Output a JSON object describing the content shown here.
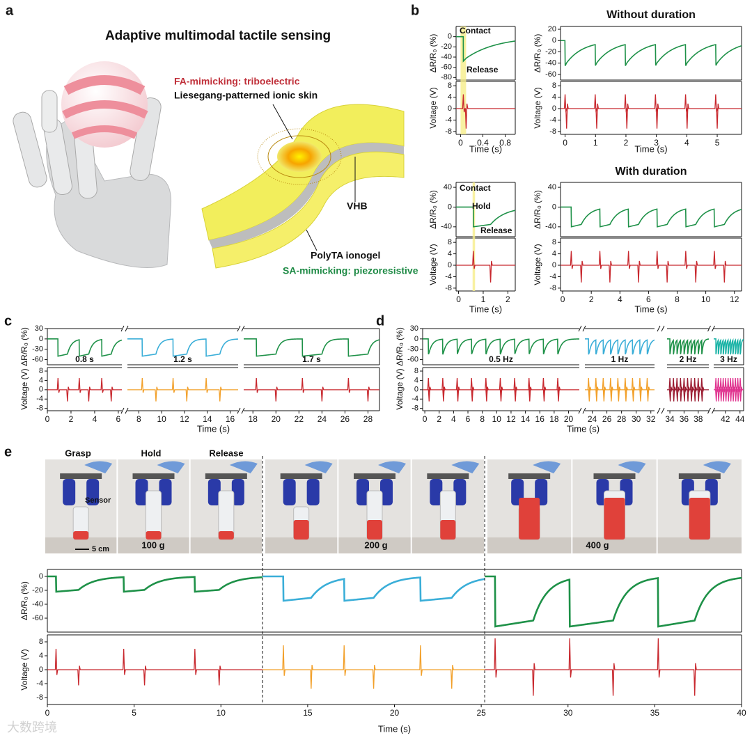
{
  "panel_labels": [
    "a",
    "b",
    "c",
    "d",
    "e"
  ],
  "illustration": {
    "title": "Adaptive multimodal tactile sensing",
    "fa_label": "FA-mimicking: triboelectric",
    "skin_label": "Liesegang-patterned ionic skin",
    "vhb_label": "VHB",
    "ionogel_label": "PolyTA ionogel",
    "sa_label": "SA-mimicking: piezoresistive"
  },
  "photos": {
    "labels": [
      "Grasp",
      "Hold",
      "Release",
      "Sensor",
      "5 cm",
      "100 g",
      "200 g",
      "400 g"
    ]
  },
  "watermark": "大数跨境",
  "chart_data": [
    {
      "type": "line",
      "annotations": [
        "Contact",
        "Release"
      ],
      "xlabel": "Time (s)",
      "resistance": {
        "label": "ΔR/R₀ (%)",
        "ylim": [
          -85,
          20
        ],
        "yticks": [
          0,
          -20,
          -40,
          -60,
          -80
        ]
      },
      "voltage": {
        "label": "Voltage (V)",
        "ylim": [
          -9,
          9.5
        ],
        "yticks": [
          8,
          4,
          0,
          -4,
          -8
        ]
      },
      "highlight": [
        0,
        0.1
      ],
      "segments": [
        {
          "xlim": [
            -0.08,
            0.98
          ],
          "xticks": [
            0,
            0.4,
            0.8
          ],
          "series": [
            {
              "contact_times": [
                0.05
              ],
              "release_times": [
                0.1
              ],
              "depth": 48,
              "recovery_s": 0.55,
              "spike_up": 5,
              "spike_down": -7,
              "resistance_color": "#1e9148",
              "voltage_color": "#c8282e"
            }
          ]
        }
      ]
    },
    {
      "type": "line",
      "title": "Without duration",
      "xlabel": "Time (s)",
      "resistance": {
        "label": "ΔR/R₀ (%)",
        "ylim": [
          -70,
          25
        ],
        "yticks": [
          20,
          0,
          -20,
          -40,
          -60
        ]
      },
      "voltage": {
        "label": "Voltage (V)",
        "ylim": [
          -9,
          9.5
        ],
        "yticks": [
          8,
          4,
          0,
          -4,
          -8
        ]
      },
      "segments": [
        {
          "xlim": [
            -0.15,
            5.8
          ],
          "xticks": [
            0,
            1,
            2,
            3,
            4,
            5
          ],
          "series": [
            {
              "contact_times": [
                0,
                0.99,
                1.98,
                2.97,
                3.96,
                4.95
              ],
              "release_times": [
                0.05,
                1.04,
                2.03,
                3.02,
                4.01,
                5.0
              ],
              "depth": 45,
              "recovery_s": 0.55,
              "spike_up": 5,
              "spike_down": -7,
              "resistance_color": "#1e9148",
              "voltage_color": "#c8282e"
            }
          ]
        }
      ]
    },
    {
      "type": "line",
      "annotations": [
        "Contact",
        "Hold",
        "Release"
      ],
      "xlabel": "Time (s)",
      "resistance": {
        "label": "ΔR/R₀ (%)",
        "ylim": [
          -60,
          50
        ],
        "yticks": [
          40,
          0,
          -40
        ]
      },
      "voltage": {
        "label": "Voltage (V)",
        "ylim": [
          -9,
          9.5
        ],
        "yticks": [
          8,
          4,
          0,
          -4,
          -8
        ]
      },
      "highlight": [
        0.57,
        0.67
      ],
      "segments": [
        {
          "xlim": [
            -0.1,
            2.3
          ],
          "xticks": [
            0,
            1,
            2
          ],
          "series": [
            {
              "contact_times": [
                0.6
              ],
              "release_times": [
                1.3
              ],
              "depth": 40,
              "recovery_s": 0.6,
              "spike_up": 5,
              "spike_down": -6,
              "resistance_color": "#1e9148",
              "voltage_color": "#c8282e"
            }
          ]
        }
      ]
    },
    {
      "type": "line",
      "title": "With duration",
      "xlabel": "Time (s)",
      "resistance": {
        "label": "ΔR/R₀ (%)",
        "ylim": [
          -60,
          50
        ],
        "yticks": [
          40,
          0,
          -40
        ]
      },
      "voltage": {
        "label": "Voltage (V)",
        "ylim": [
          -9,
          9.5
        ],
        "yticks": [
          8,
          4,
          0,
          -4,
          -8
        ]
      },
      "segments": [
        {
          "xlim": [
            -0.15,
            12.5
          ],
          "xticks": [
            0,
            2,
            4,
            6,
            8,
            10,
            12
          ],
          "series": [
            {
              "contact_times": [
                0.6,
                2.6,
                4.6,
                6.6,
                8.6,
                10.6
              ],
              "release_times": [
                1.3,
                3.3,
                5.3,
                7.3,
                9.3,
                11.3
              ],
              "depth": 40,
              "recovery_s": 0.6,
              "spike_up": 5,
              "spike_down": -6,
              "resistance_color": "#1e9148",
              "voltage_color": "#c8282e"
            }
          ]
        }
      ]
    },
    {
      "type": "line",
      "xlabel": "Time (s)",
      "resistance": {
        "label": "ΔR/R₀ (%)",
        "ylim": [
          -75,
          30
        ],
        "yticks": [
          30,
          0,
          -30,
          -60
        ]
      },
      "voltage": {
        "label": "Voltage (V)",
        "ylim": [
          -9,
          9.5
        ],
        "yticks": [
          8,
          4,
          0,
          -4,
          -8
        ]
      },
      "segments": [
        {
          "xlim": [
            0,
            6.3
          ],
          "xticks": [
            0,
            2,
            4,
            6
          ],
          "label": "0.8 s",
          "series": [
            {
              "contact_times": [
                0.9,
                2.7,
                4.6
              ],
              "release_times": [
                1.7,
                3.5,
                5.4
              ],
              "depth": 50,
              "recovery_s": 0.35,
              "spike_up": 5,
              "spike_down": -5,
              "resistance_color": "#1e9148",
              "voltage_color": "#c8282e"
            }
          ]
        },
        {
          "xlim": [
            7,
            16.7
          ],
          "xticks": [
            8,
            10,
            12,
            14,
            16
          ],
          "label": "1.2 s",
          "series": [
            {
              "contact_times": [
                8.3,
                11.0,
                13.9
              ],
              "release_times": [
                9.5,
                12.2,
                15.1
              ],
              "depth": 50,
              "recovery_s": 0.35,
              "spike_up": 5,
              "spike_down": -5,
              "resistance_color": "#3aaed8",
              "voltage_color": "#f2a02a"
            }
          ]
        },
        {
          "xlim": [
            17.2,
            29
          ],
          "xticks": [
            18,
            20,
            22,
            24,
            26,
            28
          ],
          "label": "1.7 s",
          "series": [
            {
              "contact_times": [
                18.3,
                22.3,
                26.3
              ],
              "release_times": [
                20.0,
                24.0,
                28.0
              ],
              "depth": 50,
              "recovery_s": 0.35,
              "spike_up": 5,
              "spike_down": -5,
              "resistance_color": "#1e9148",
              "voltage_color": "#c8282e"
            }
          ]
        }
      ]
    },
    {
      "type": "line",
      "xlabel": "Time (s)",
      "resistance": {
        "label": "ΔR/R₀ (%)",
        "ylim": [
          -75,
          30
        ],
        "yticks": [
          30,
          0,
          -30,
          -60
        ]
      },
      "voltage": {
        "label": "Voltage (V)",
        "ylim": [
          -9,
          9.5
        ],
        "yticks": [
          8,
          4,
          0,
          -4,
          -8
        ]
      },
      "segments": [
        {
          "xlim": [
            -0.3,
            21.5
          ],
          "xticks": [
            0,
            2,
            4,
            6,
            8,
            10,
            12,
            14,
            16,
            18,
            20
          ],
          "label": "0.5 Hz",
          "series": [
            {
              "contact_times": [
                0.5,
                2.5,
                4.5,
                6.5,
                8.5,
                10.5,
                12.5,
                14.5,
                16.5,
                18.5
              ],
              "release_times": [
                0.6,
                2.6,
                4.6,
                6.6,
                8.6,
                10.6,
                12.6,
                14.6,
                16.6,
                18.6
              ],
              "depth": 45,
              "recovery_s": 0.5,
              "spike_up": 5,
              "spike_down": -5,
              "resistance_color": "#1e9148",
              "voltage_color": "#c8282e"
            }
          ]
        },
        {
          "xlim": [
            23,
            32.5
          ],
          "xticks": [
            24,
            26,
            28,
            30,
            32
          ],
          "label": "1 Hz",
          "series": [
            {
              "contact_times": [
                23.5,
                24.5,
                25.5,
                26.5,
                27.5,
                28.5,
                29.5,
                30.5,
                31.5
              ],
              "release_times": [
                23.6,
                24.6,
                25.6,
                26.6,
                27.6,
                28.6,
                29.6,
                30.6,
                31.6
              ],
              "depth": 45,
              "recovery_s": 0.35,
              "spike_up": 5,
              "spike_down": -5,
              "resistance_color": "#3aaed8",
              "voltage_color": "#f2a02a"
            }
          ]
        },
        {
          "xlim": [
            33.6,
            39.5
          ],
          "xticks": [
            34,
            36,
            38
          ],
          "label": "2 Hz",
          "series": [
            {
              "contact_times": [
                34.0,
                34.5,
                35.0,
                35.5,
                36.0,
                36.5,
                37.0,
                37.5,
                38.0,
                38.5
              ],
              "release_times": [
                34.05,
                34.55,
                35.05,
                35.55,
                36.05,
                36.55,
                37.05,
                37.55,
                38.05,
                38.55
              ],
              "depth": 45,
              "recovery_s": 0.2,
              "spike_up": 5,
              "spike_down": -5,
              "resistance_color": "#1e9148",
              "voltage_color": "#9b1b30"
            }
          ]
        },
        {
          "xlim": [
            40.4,
            44.5
          ],
          "xticks": [
            42,
            44
          ],
          "label": "3 Hz",
          "series": [
            {
              "contact_times": [
                40.7,
                41.03,
                41.37,
                41.7,
                42.03,
                42.37,
                42.7,
                43.03,
                43.37,
                43.7,
                44.03
              ],
              "release_times": [
                40.75,
                41.08,
                41.42,
                41.75,
                42.08,
                42.42,
                42.75,
                43.08,
                43.42,
                43.75,
                44.08
              ],
              "depth": 45,
              "recovery_s": 0.12,
              "spike_up": 5,
              "spike_down": -5,
              "resistance_color": "#1ab3a6",
              "voltage_color": "#e0338f"
            }
          ]
        }
      ]
    },
    {
      "type": "line",
      "xlabel": "Time (s)",
      "dividers": [
        12.4,
        25.2
      ],
      "resistance": {
        "label": "ΔR/R₀ (%)",
        "ylim": [
          -80,
          10
        ],
        "yticks": [
          0,
          -20,
          -40,
          -60
        ]
      },
      "voltage": {
        "label": "Voltage (V)",
        "ylim": [
          -10,
          10
        ],
        "yticks": [
          8,
          4,
          0,
          -4,
          -8
        ]
      },
      "segments": [
        {
          "xlim": [
            0,
            40
          ],
          "xticks": [
            0,
            5,
            10,
            15,
            20,
            25,
            30,
            35,
            40
          ],
          "series": [
            {
              "contact_times": [
                0.5,
                4.4,
                8.5
              ],
              "release_times": [
                1.8,
                5.6,
                9.9
              ],
              "depth": 22,
              "recovery_s": 0.9,
              "spike_up": 6,
              "spike_down": -4.5,
              "resistance_color": "#1e9148",
              "voltage_color": "#c8282e"
            },
            {
              "contact_times": [
                13.6,
                17.1,
                21.5
              ],
              "release_times": [
                15.2,
                18.8,
                23.3
              ],
              "depth": 35,
              "recovery_s": 0.9,
              "spike_up": 7,
              "spike_down": -5.5,
              "resistance_color": "#3aaed8",
              "voltage_color": "#f2a02a"
            },
            {
              "contact_times": [
                25.8,
                30.1,
                35.2
              ],
              "release_times": [
                28.0,
                32.6,
                37.3
              ],
              "depth": 72,
              "recovery_s": 0.8,
              "spike_up": 9,
              "spike_down": -7.5,
              "resistance_color": "#1e9148",
              "voltage_color": "#c8282e"
            }
          ]
        }
      ]
    }
  ]
}
